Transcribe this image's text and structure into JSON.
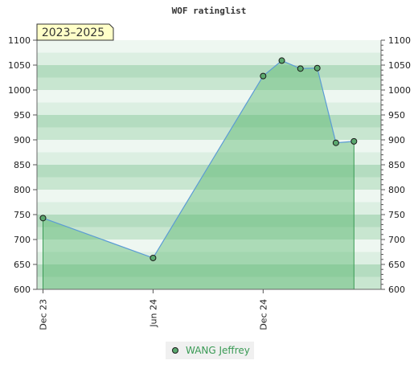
{
  "chart_data": {
    "type": "area",
    "title": "WOF ratinglist",
    "period_badge": "2023–2025",
    "xlabel": "",
    "ylabel": "",
    "ylim": [
      600,
      1100
    ],
    "y_ticks": [
      600,
      650,
      700,
      750,
      800,
      850,
      900,
      950,
      1000,
      1050,
      1100
    ],
    "y_tick_labels": [
      "600",
      "650",
      "700",
      "750",
      "800",
      "850",
      "900",
      "950",
      "1000",
      "1050",
      "1100"
    ],
    "x_tick_labels": [
      "Dec 23",
      "Jun 24",
      "Dec 24"
    ],
    "x_ticks": [
      "2023-12-01",
      "2024-06-01",
      "2024-12-01"
    ],
    "xlim": [
      "2023-11-21",
      "2025-06-15"
    ],
    "grid": true,
    "legend_position": "bottom-center",
    "series": [
      {
        "name": "WANG Jeffrey",
        "color": "#5b9bd5",
        "fill_color": "#5cb870",
        "marker_color": "#5ba96f",
        "points": [
          {
            "x": "2023-12-01",
            "y": 743
          },
          {
            "x": "2024-06-01",
            "y": 663
          },
          {
            "x": "2024-12-01",
            "y": 1028
          },
          {
            "x": "2025-01-01",
            "y": 1059
          },
          {
            "x": "2025-02-01",
            "y": 1043
          },
          {
            "x": "2025-03-01",
            "y": 1044
          },
          {
            "x": "2025-04-01",
            "y": 894
          },
          {
            "x": "2025-05-01",
            "y": 897
          }
        ]
      }
    ]
  }
}
